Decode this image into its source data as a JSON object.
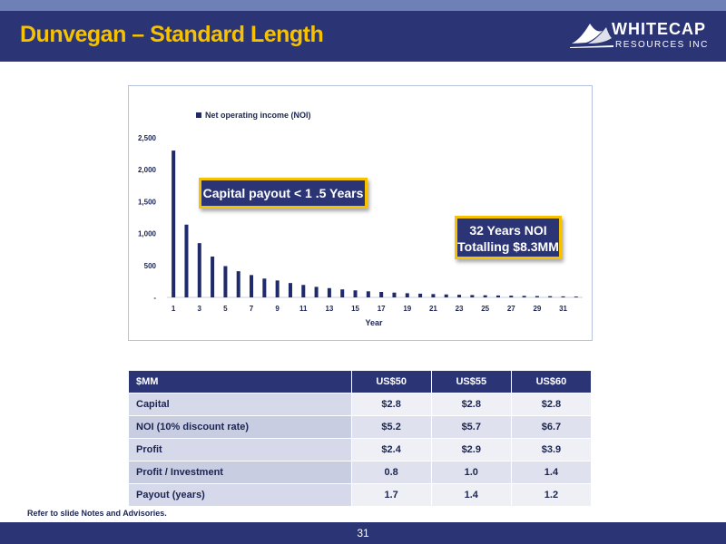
{
  "slide": {
    "title": "Dunvegan – Standard Length",
    "footnote": "Refer to slide Notes and Advisories.",
    "page_number": "31"
  },
  "logo": {
    "name": "WHITECAP",
    "sub": "RESOURCES INC",
    "icon": "wave-icon"
  },
  "colors": {
    "navy": "#2b3575",
    "gold": "#f6c200",
    "bar": "#1f2a6b"
  },
  "callouts": {
    "payout": "Capital payout < 1 .5 Years",
    "noi_line1": "32 Years NOI",
    "noi_line2": "Totalling $8.3MM"
  },
  "chart_data": {
    "type": "bar",
    "title": "",
    "xlabel": "Year",
    "ylabel": "",
    "legend": {
      "position": "top-left",
      "entries": [
        "Net operating income (NOI)"
      ]
    },
    "ylim": [
      0,
      2500
    ],
    "yticks": [
      0,
      500,
      1000,
      1500,
      2000,
      2500
    ],
    "ytick_labels": [
      "-",
      "500",
      "1,000",
      "1,500",
      "2,000",
      "2,500"
    ],
    "xtick_labels": [
      "1",
      "3",
      "5",
      "7",
      "9",
      "11",
      "13",
      "15",
      "17",
      "19",
      "21",
      "23",
      "25",
      "27",
      "29",
      "31"
    ],
    "grid": false,
    "categories": [
      1,
      2,
      3,
      4,
      5,
      6,
      7,
      8,
      9,
      10,
      11,
      12,
      13,
      14,
      15,
      16,
      17,
      18,
      19,
      20,
      21,
      22,
      23,
      24,
      25,
      26,
      27,
      28,
      29,
      30,
      31,
      32
    ],
    "series": [
      {
        "name": "Net operating income (NOI)",
        "values": [
          2300,
          1140,
          850,
          640,
          490,
          410,
          350,
          295,
          265,
          225,
          195,
          165,
          145,
          125,
          110,
          95,
          85,
          75,
          65,
          58,
          52,
          46,
          41,
          37,
          33,
          30,
          27,
          24,
          21,
          19,
          16,
          13
        ]
      }
    ]
  },
  "table": {
    "headers": [
      "$MM",
      "US$50",
      "US$55",
      "US$60"
    ],
    "rows": [
      [
        "Capital",
        "$2.8",
        "$2.8",
        "$2.8"
      ],
      [
        "NOI (10% discount rate)",
        "$5.2",
        "$5.7",
        "$6.7"
      ],
      [
        "Profit",
        "$2.4",
        "$2.9",
        "$3.9"
      ],
      [
        "Profit / Investment",
        "0.8",
        "1.0",
        "1.4"
      ],
      [
        "Payout (years)",
        "1.7",
        "1.4",
        "1.2"
      ]
    ]
  }
}
